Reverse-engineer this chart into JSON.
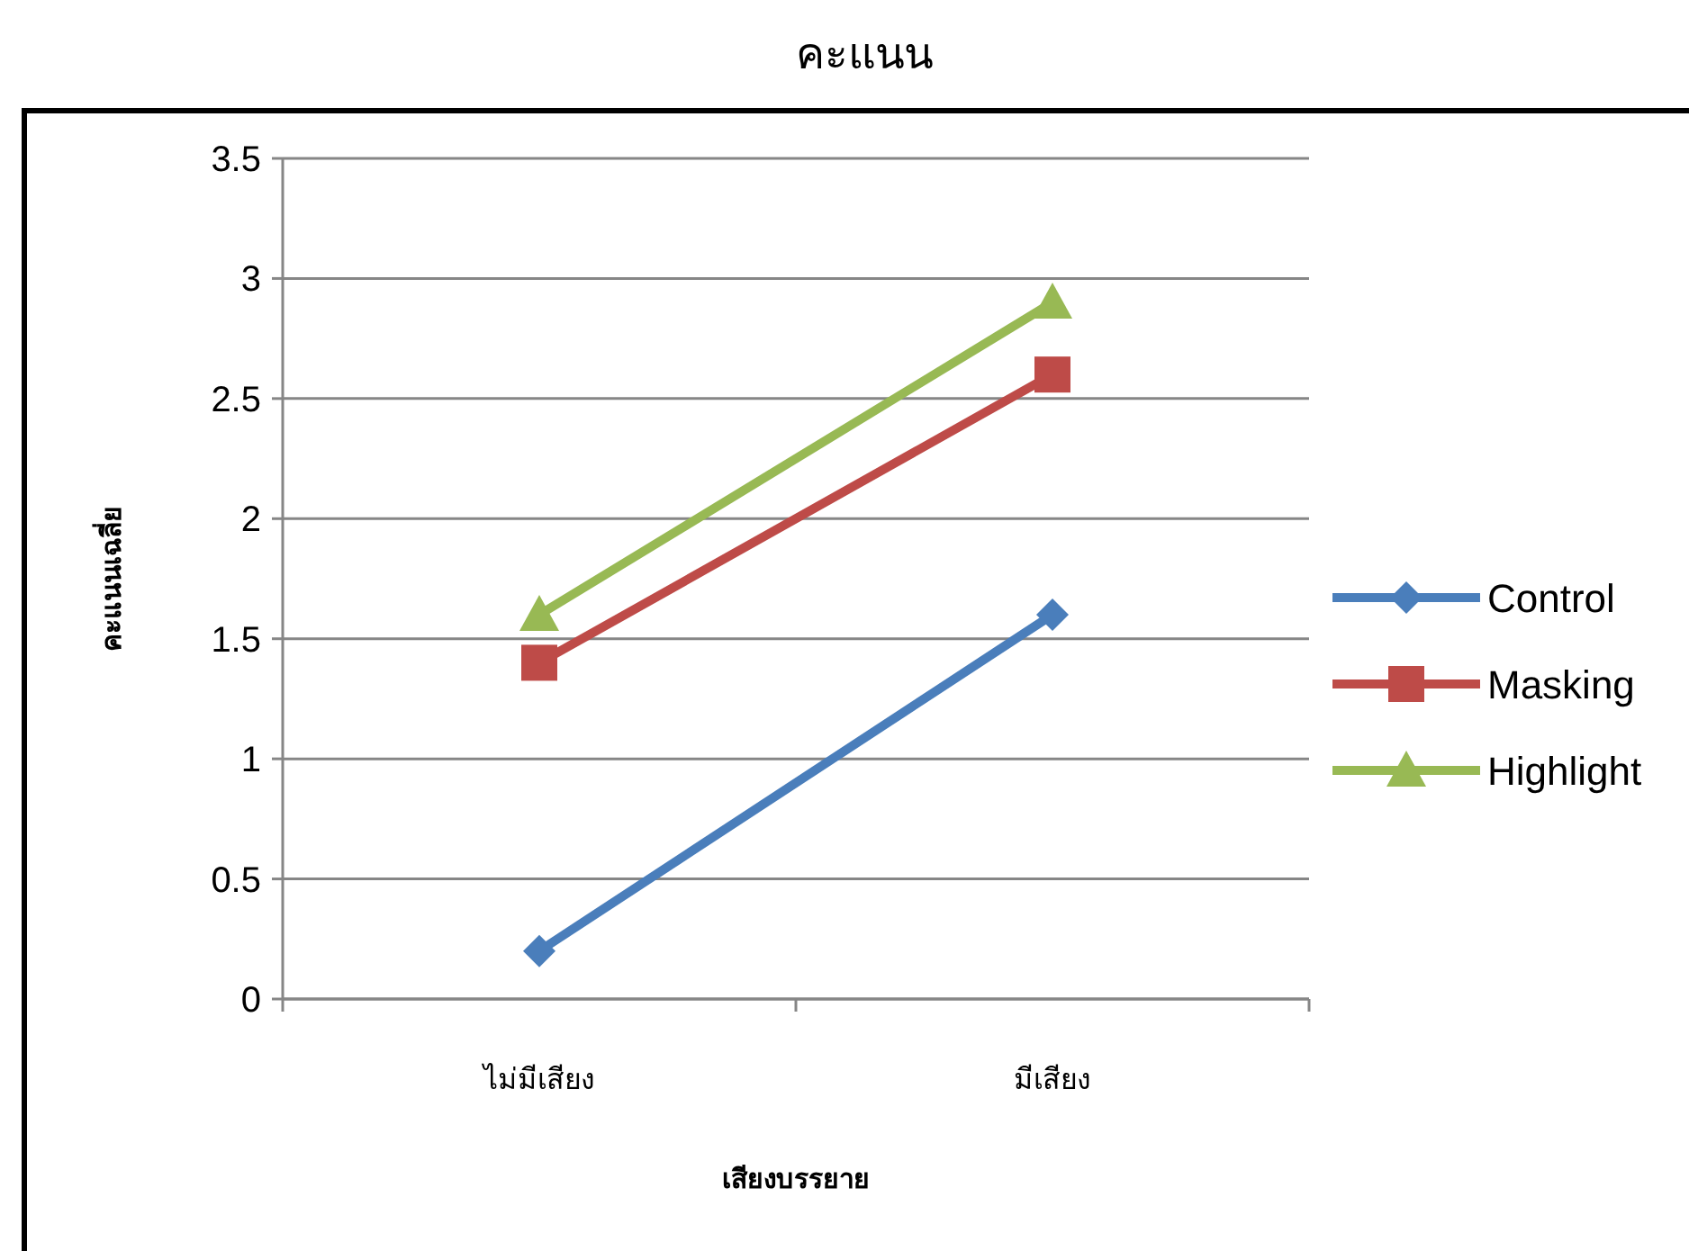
{
  "chart_data": {
    "type": "line",
    "title": "คะแนน",
    "xlabel": "เสียงบรรยาย",
    "ylabel": "คะแนนเฉลี่ย",
    "categories": [
      "ไม่มีเสียง",
      "มีเสียง"
    ],
    "series": [
      {
        "name": "Control",
        "color": "#4a7ebb",
        "marker": "diamond",
        "values": [
          0.2,
          1.6
        ]
      },
      {
        "name": "Masking",
        "color": "#be4b48",
        "marker": "square",
        "values": [
          1.4,
          2.6
        ]
      },
      {
        "name": "Highlight",
        "color": "#98b954",
        "marker": "triangle",
        "values": [
          1.6,
          2.9
        ]
      }
    ],
    "ylim": [
      0,
      3.5
    ],
    "yticks": [
      0,
      {
        "value": 0.5,
        "label": "0.5"
      },
      1,
      {
        "value": 1.5,
        "label": "1.5"
      },
      2,
      {
        "value": 2.5,
        "label": "2.5"
      },
      3,
      {
        "value": 3.5,
        "label": "3.5"
      }
    ],
    "grid": "y",
    "legend": "right",
    "line_style": "solid"
  }
}
